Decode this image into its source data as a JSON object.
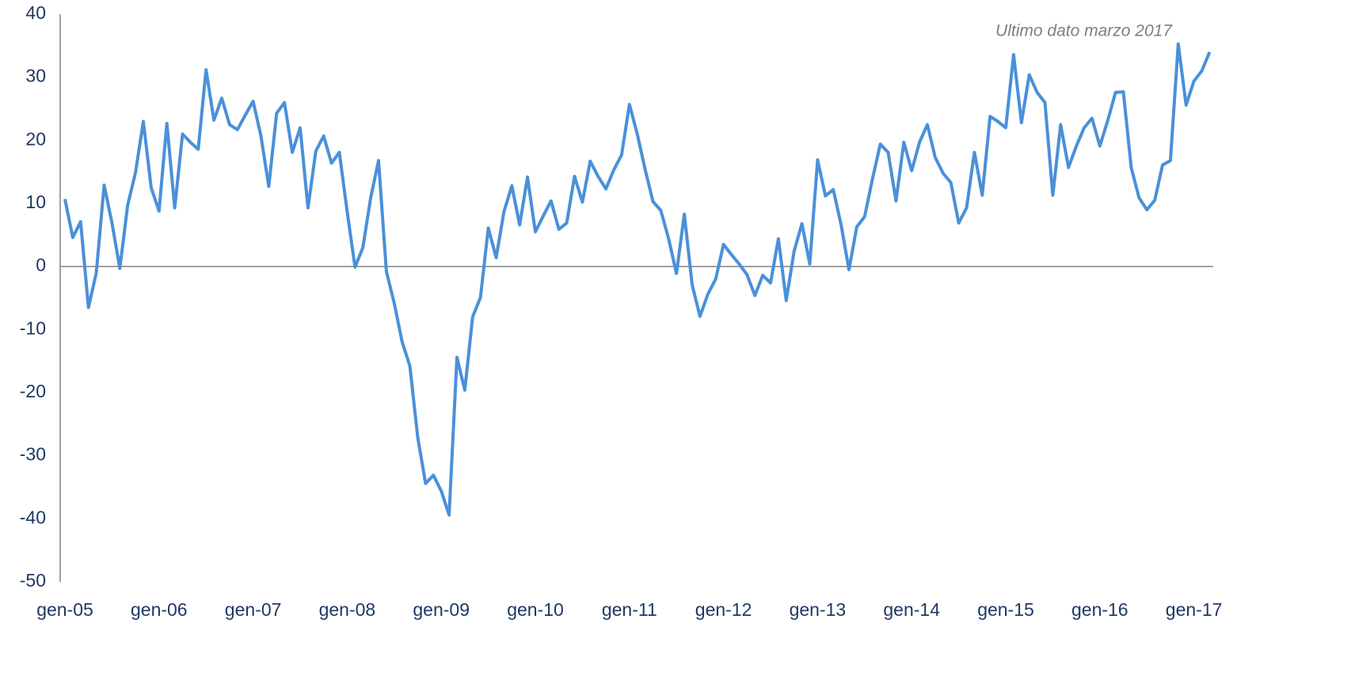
{
  "chart_data": {
    "type": "line",
    "annotation": "Ultimo dato marzo 2017",
    "categories": [
      "gen-05",
      null,
      null,
      null,
      null,
      null,
      null,
      null,
      null,
      null,
      null,
      null,
      "gen-06",
      null,
      null,
      null,
      null,
      null,
      null,
      null,
      null,
      null,
      null,
      null,
      "gen-07",
      null,
      null,
      null,
      null,
      null,
      null,
      null,
      null,
      null,
      null,
      null,
      "gen-08",
      null,
      null,
      null,
      null,
      null,
      null,
      null,
      null,
      null,
      null,
      null,
      "gen-09",
      null,
      null,
      null,
      null,
      null,
      null,
      null,
      null,
      null,
      null,
      null,
      "gen-10",
      null,
      null,
      null,
      null,
      null,
      null,
      null,
      null,
      null,
      null,
      null,
      "gen-11",
      null,
      null,
      null,
      null,
      null,
      null,
      null,
      null,
      null,
      null,
      null,
      "gen-12",
      null,
      null,
      null,
      null,
      null,
      null,
      null,
      null,
      null,
      null,
      null,
      "gen-13",
      null,
      null,
      null,
      null,
      null,
      null,
      null,
      null,
      null,
      null,
      null,
      "gen-14",
      null,
      null,
      null,
      null,
      null,
      null,
      null,
      null,
      null,
      null,
      null,
      "gen-15",
      null,
      null,
      null,
      null,
      null,
      null,
      null,
      null,
      null,
      null,
      null,
      "gen-16",
      null,
      null,
      null,
      null,
      null,
      null,
      null,
      null,
      null,
      null,
      null,
      "gen-17",
      null,
      null
    ],
    "values": [
      10.7,
      4.6,
      7.1,
      -6.5,
      -1,
      12.9,
      6.9,
      -0.3,
      9.7,
      14.9,
      23,
      12.5,
      8.8,
      22.7,
      9.3,
      21,
      19.7,
      18.6,
      31.2,
      23.2,
      26.7,
      22.5,
      21.7,
      24,
      26.2,
      20.7,
      12.7,
      24.3,
      26,
      18.1,
      22,
      9.3,
      18.3,
      20.7,
      16.4,
      18.1,
      8.7,
      -0.1,
      3,
      10.9,
      16.8,
      -0.8,
      -5.8,
      -11.9,
      -15.8,
      -27.1,
      -34.4,
      -33.1,
      -35.6,
      -39.4,
      -14.4,
      -19.6,
      -8,
      -4.9,
      6.1,
      1.4,
      8.7,
      12.8,
      6.6,
      14.2,
      5.5,
      8,
      10.4,
      5.9,
      6.9,
      14.3,
      10.2,
      16.7,
      14.3,
      12.3,
      15.3,
      17.7,
      25.7,
      21,
      15.4,
      10.3,
      8.9,
      4.4,
      -1.1,
      8.3,
      -2.9,
      -7.9,
      -4.4,
      -2,
      3.5,
      1.9,
      0.4,
      -1.3,
      -4.6,
      -1.4,
      -2.6,
      4.4,
      -5.4,
      2.4,
      6.8,
      0.4,
      16.9,
      11.2,
      12.2,
      6.6,
      -0.5,
      6.3,
      7.9,
      13.9,
      19.4,
      18.1,
      10.4,
      19.7,
      15.2,
      19.7,
      22.5,
      17.3,
      14.8,
      13.3,
      6.9,
      9.3,
      18.1,
      11.3,
      23.8,
      23,
      22,
      33.6,
      22.8,
      30.4,
      27.6,
      26,
      11.3,
      22.5,
      15.7,
      19.1,
      22,
      23.5,
      19.1,
      23.1,
      27.6,
      27.7,
      15.7,
      10.9,
      9,
      10.5,
      16.1,
      16.8,
      35.3,
      25.6,
      29.4,
      31,
      34
    ],
    "color": "#4a90d9",
    "ylim": [
      -50,
      40
    ],
    "yticks": [
      -50,
      -40,
      -30,
      -20,
      -10,
      0,
      10,
      20,
      30,
      40
    ]
  }
}
